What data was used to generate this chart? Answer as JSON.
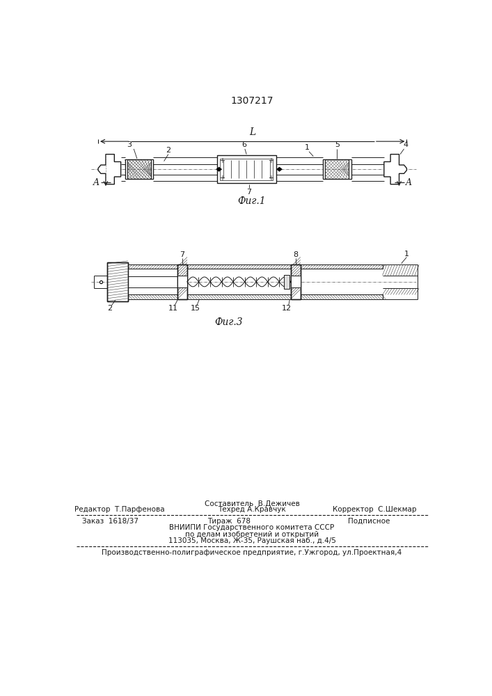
{
  "title": "1307217",
  "fig1_caption": "Фиг.1",
  "fig3_caption": "Фиг.3",
  "bg_color": "#ffffff",
  "line_color": "#1a1a1a",
  "footer_line1_left": "Редактор  Т.Парфенова",
  "footer_line1_center_top": "Составитель  В.Дежичев",
  "footer_line1_center_bot": "Техред А.Кравчук",
  "footer_line1_right": "Корректор  С.Шекмар",
  "footer_line2_col1": "Заказ  1618/37",
  "footer_line2_col2": "Тираж  678",
  "footer_line2_col3": "Подписное",
  "footer_line3": "ВНИИПИ Государственного комитета СССР",
  "footer_line4": "по делам изобретений и открытий",
  "footer_line5": "113035, Москва, Ж-35, Раушская наб., д.4/5",
  "footer_last": "Производственно-полиграфическое предприятие, г.Ужгород, ул.Проектная,4"
}
